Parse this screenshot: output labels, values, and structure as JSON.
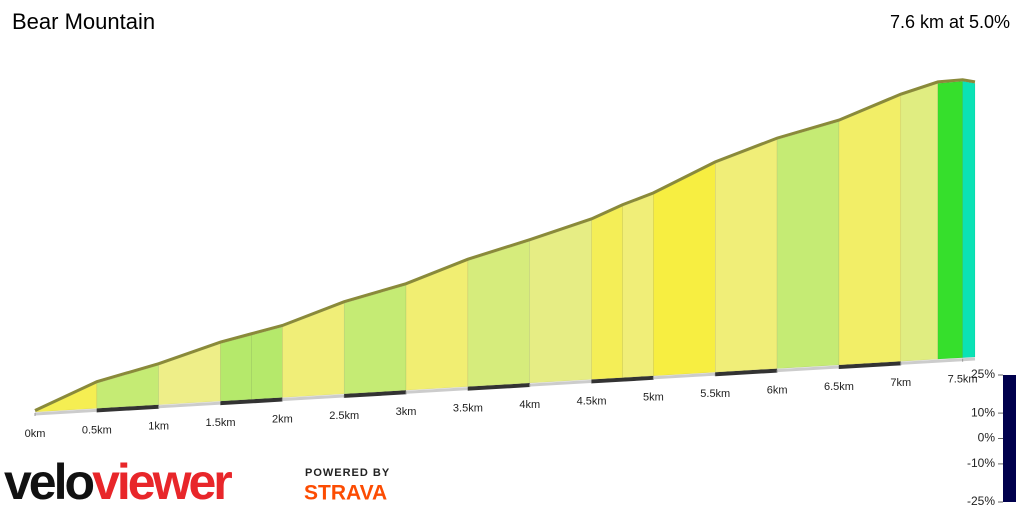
{
  "chart_data": {
    "type": "elevation-profile",
    "title": "Bear Mountain",
    "subtitle": "7.6 km at 5.0%",
    "x": [
      0,
      0.5,
      1.0,
      1.5,
      1.75,
      2.0,
      2.5,
      3.0,
      3.5,
      4.0,
      4.5,
      4.75,
      5.0,
      5.5,
      6.0,
      6.5,
      7.0,
      7.3,
      7.5,
      7.6
    ],
    "elevation": [
      0,
      35,
      55,
      80,
      89,
      98,
      126,
      146,
      175,
      197,
      221,
      238,
      252,
      290,
      318,
      338,
      369,
      383,
      384,
      380
    ],
    "xlim": [
      0,
      7.6
    ],
    "xticks": [
      {
        "value": 0,
        "label": "0km"
      },
      {
        "value": 0.5,
        "label": "0.5km"
      },
      {
        "value": 1,
        "label": "1km"
      },
      {
        "value": 1.5,
        "label": "1.5km"
      },
      {
        "value": 2,
        "label": "2km"
      },
      {
        "value": 2.5,
        "label": "2.5km"
      },
      {
        "value": 3,
        "label": "3km"
      },
      {
        "value": 3.5,
        "label": "3.5km"
      },
      {
        "value": 4,
        "label": "4km"
      },
      {
        "value": 4.5,
        "label": "4.5km"
      },
      {
        "value": 5,
        "label": "5km"
      },
      {
        "value": 5.5,
        "label": "5.5km"
      },
      {
        "value": 6,
        "label": "6km"
      },
      {
        "value": 6.5,
        "label": "6.5km"
      },
      {
        "value": 7,
        "label": "7km"
      },
      {
        "value": 7.5,
        "label": "7.5km"
      }
    ],
    "colorbar": {
      "lim": [
        -25,
        25
      ],
      "ticks": [
        {
          "value": 25,
          "label": "25%"
        },
        {
          "value": 10,
          "label": "10%"
        },
        {
          "value": 0,
          "label": "0%"
        },
        {
          "value": -10,
          "label": "-10%"
        },
        {
          "value": -25,
          "label": "-25%"
        }
      ],
      "stops": [
        -25,
        -15,
        -6,
        0,
        5,
        10,
        15,
        20,
        25
      ],
      "colors": [
        "#00004d",
        "#0000ff",
        "#00e5ff",
        "#22dd22",
        "#eeee88",
        "#ffee00",
        "#ff8800",
        "#ff0000",
        "#660000"
      ]
    }
  },
  "branding": {
    "logo_dark": "velo",
    "logo_red": "viewer",
    "powered_by": "POWERED BY",
    "strava": "STRAVA"
  }
}
